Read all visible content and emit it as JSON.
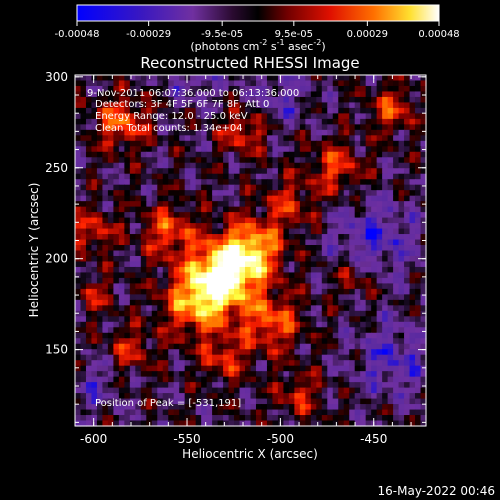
{
  "colorbar": {
    "tick_labels": [
      "-0.00048",
      "-0.00029",
      "-9.5e-05",
      "9.5e-05",
      "0.00029",
      "0.00048"
    ],
    "tick_values": [
      -0.00048,
      -0.00029,
      -9.5e-05,
      9.5e-05,
      0.00029,
      0.00048
    ],
    "range": [
      -0.00048,
      0.00048
    ],
    "units_main": "(photons cm",
    "units_exp1": "-2",
    "units_mid": " s",
    "units_exp2": "-1",
    "units_end": " asec",
    "units_exp3": "-2",
    "units_close": ")"
  },
  "chart_data": {
    "type": "heatmap",
    "title": "Reconstructed RHESSI Image",
    "xlabel": "Heliocentric X (arcsec)",
    "ylabel": "Heliocentric Y (arcsec)",
    "xlim": [
      -610,
      -422
    ],
    "ylim": [
      108,
      301
    ],
    "xticks": [
      -600,
      -550,
      -500,
      -450
    ],
    "xtick_labels": [
      "-600",
      "-550",
      "-500",
      "-450"
    ],
    "yticks": [
      150,
      200,
      250,
      300
    ],
    "ytick_labels": [
      "150",
      "200",
      "250",
      "300"
    ],
    "annotations": [
      "9-Nov-2011 06:07:36.000 to 06:13:36.000",
      "Detectors: 3F 4F 5F 6F 7F 8F, Att 0",
      "Energy Range: 12.0 - 25.0 keV",
      "Clean    Total counts: 1.34e+04"
    ],
    "peak_label": "Position of Peak = [-531,191]",
    "peak": [
      -531,
      191
    ],
    "colormap": [
      "#0000ff",
      "#5a2aa0",
      "#7030a0",
      "#000000",
      "#800000",
      "#ff2000",
      "#ff8000",
      "#ffff40",
      "#ffffff"
    ]
  },
  "footer": {
    "timestamp": "16-May-2022 00:46"
  }
}
